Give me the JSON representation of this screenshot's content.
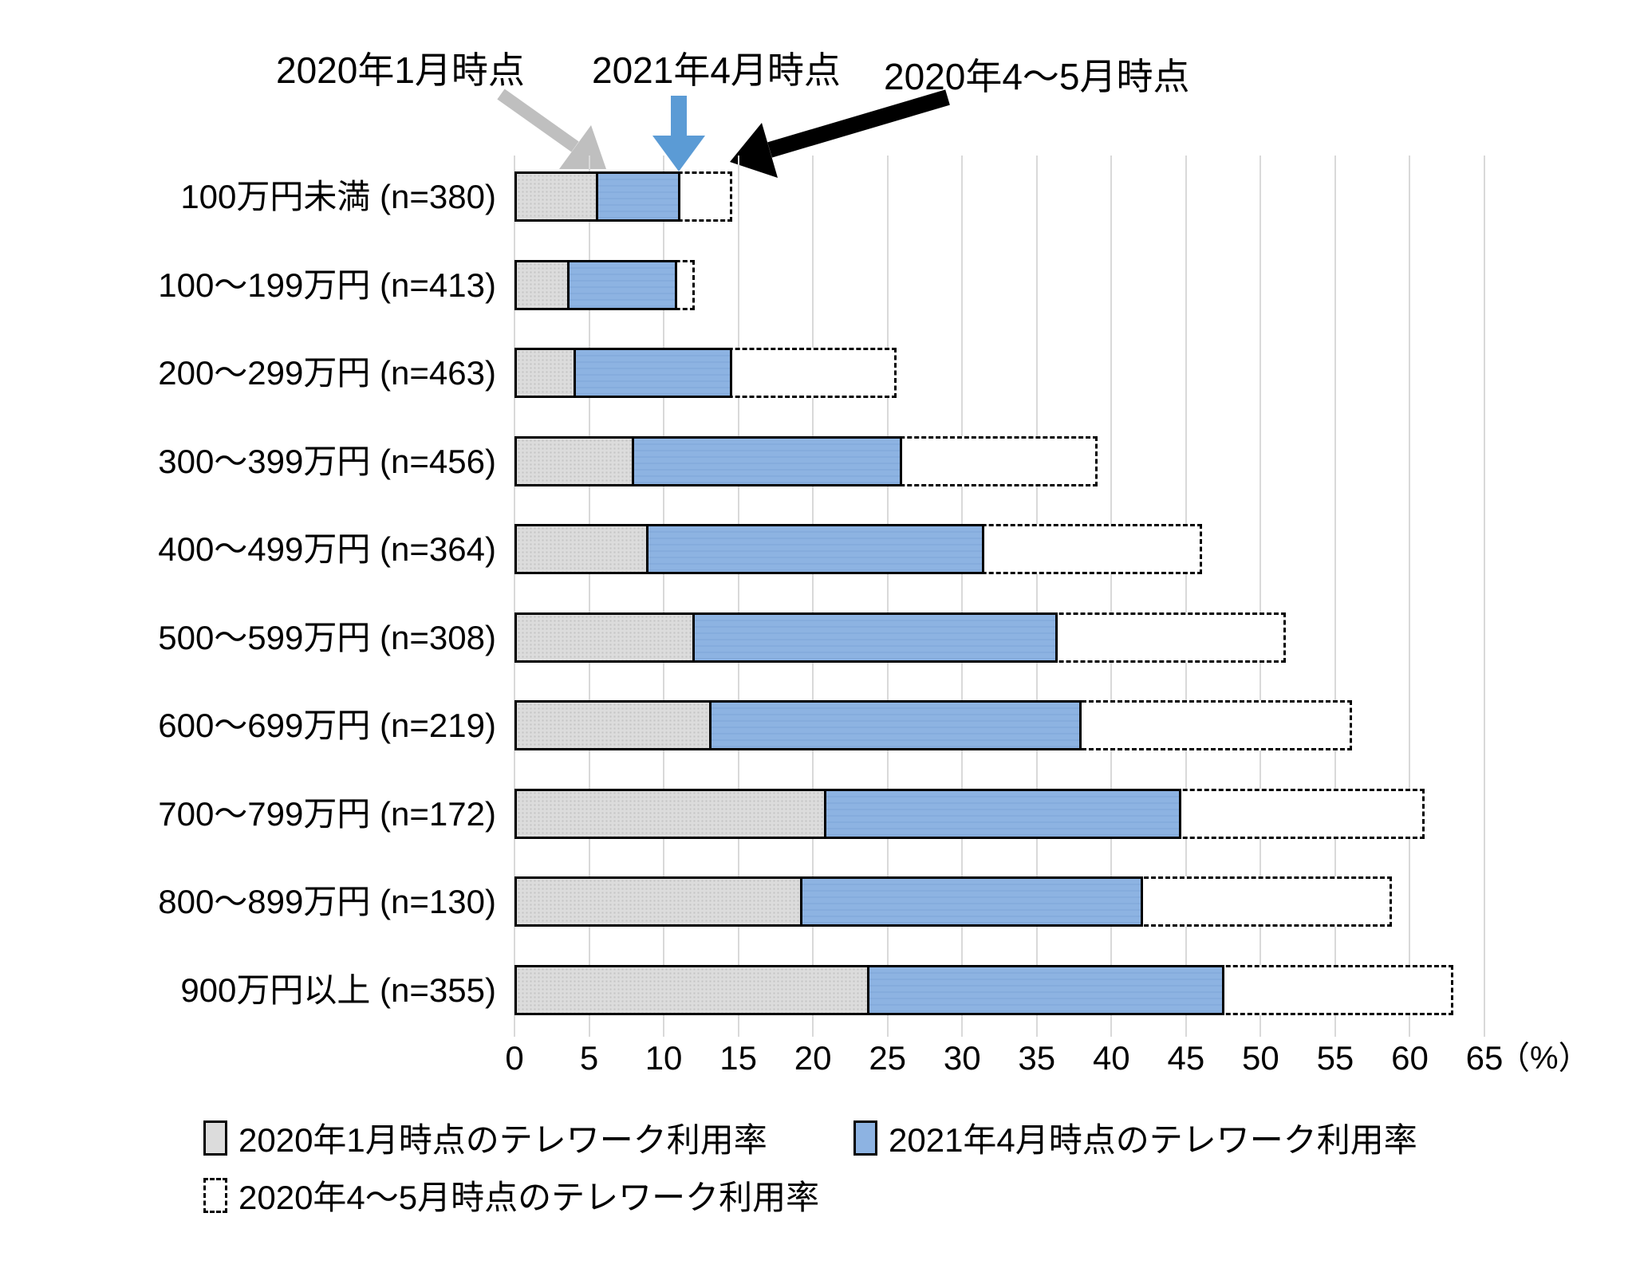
{
  "chart_data": {
    "type": "bar",
    "orientation": "horizontal",
    "categories": [
      "100万円未満 (n=380)",
      "100～199万円 (n=413)",
      "200～299万円 (n=463)",
      "300～399万円 (n=456)",
      "400～499万円 (n=364)",
      "500～599万円 (n=308)",
      "600～699万円 (n=219)",
      "700～799万円 (n=172)",
      "800～899万円 (n=130)",
      "900万円以上 (n=355)"
    ],
    "series": [
      {
        "name": "2020年1月時点のテレワーク利用率",
        "style": "solid",
        "color": "#DCDCDC",
        "values": [
          5.6,
          3.7,
          4.1,
          8.0,
          9.0,
          12.1,
          13.2,
          20.9,
          19.3,
          23.8
        ]
      },
      {
        "name": "2021年4月時点のテレワーク利用率",
        "style": "solid",
        "color": "#8DB3E2",
        "values": [
          11.1,
          10.9,
          14.6,
          26.0,
          31.5,
          36.4,
          38.0,
          44.7,
          42.1,
          47.6
        ]
      },
      {
        "name": "2020年4～5月時点のテレワーク利用率",
        "style": "dashed",
        "color": "#FFFFFF",
        "values": [
          14.6,
          12.1,
          25.6,
          39.1,
          46.1,
          51.7,
          56.1,
          61.0,
          58.8,
          62.9
        ]
      }
    ],
    "x_axis": {
      "min": 0,
      "max": 65,
      "tick_step": 5,
      "ticks": [
        0,
        5,
        10,
        15,
        20,
        25,
        30,
        35,
        40,
        45,
        50,
        55,
        60,
        65
      ],
      "unit_label": "（%）"
    },
    "grid": true,
    "legend_position": "bottom"
  },
  "annotations": [
    {
      "label": "2020年1月時点",
      "arrow_color": "#BFBFBF",
      "target_series": "2020年1月時点のテレワーク利用率"
    },
    {
      "label": "2021年4月時点",
      "arrow_color": "#5B9BD5",
      "target_series": "2021年4月時点のテレワーク利用率"
    },
    {
      "label": "2020年4～5月時点",
      "arrow_color": "#000000",
      "target_series": "2020年4～5月時点のテレワーク利用率"
    }
  ],
  "colors": {
    "gridline": "#D9D9D9",
    "bar_border": "#000000",
    "gray_fill": "#DCDCDC",
    "blue_fill": "#8DB3E2",
    "background": "#FFFFFF"
  }
}
